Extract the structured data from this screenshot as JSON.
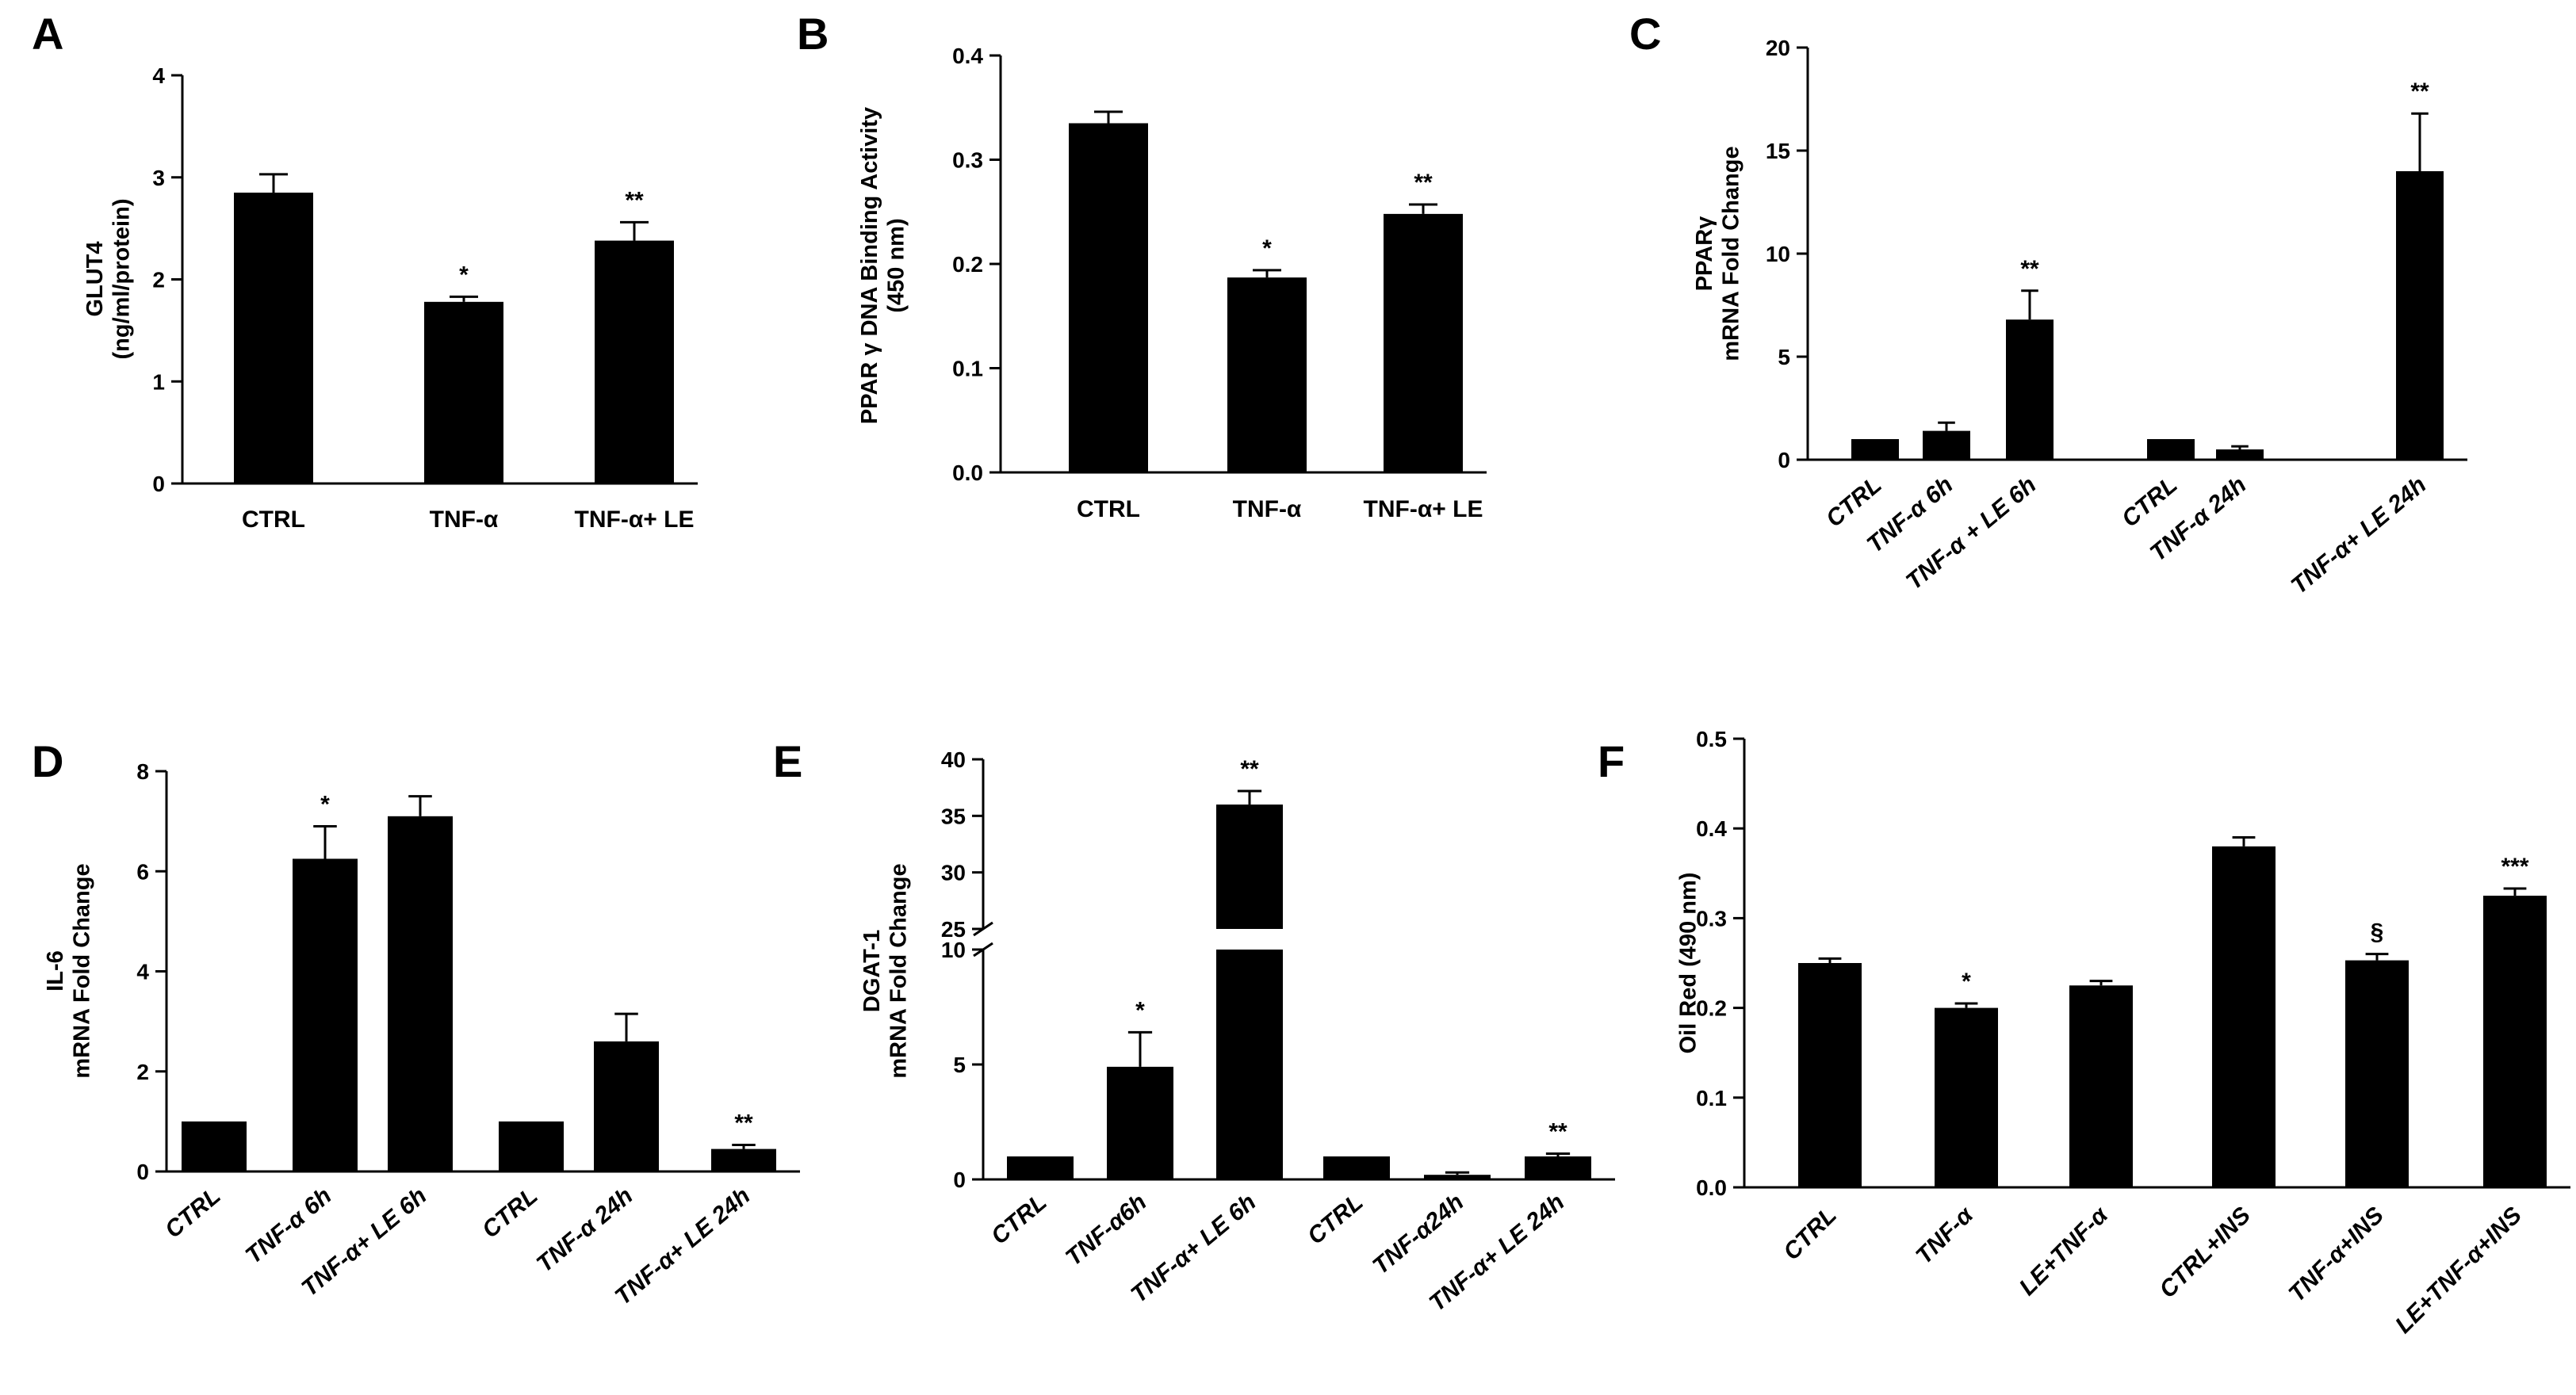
{
  "chart_data": [
    {
      "panel": "A",
      "type": "bar",
      "ylabel": [
        "GLUT4",
        "(ng/ml/protein)"
      ],
      "ylim": [
        0,
        4
      ],
      "yticks": [
        "0",
        "1",
        "2",
        "3",
        "4"
      ],
      "categories": [
        "CTRL",
        "TNF-α",
        "TNF-α+ LE"
      ],
      "values": [
        2.85,
        1.78,
        2.38
      ],
      "errors": [
        0.18,
        0.05,
        0.18
      ],
      "significance": [
        "",
        "*",
        "**"
      ]
    },
    {
      "panel": "B",
      "type": "bar",
      "ylabel": [
        "PPAR γ DNA Binding Activity",
        "(450 nm)"
      ],
      "ylim": [
        0,
        0.4
      ],
      "yticks": [
        "0.0",
        "0.1",
        "0.2",
        "0.3",
        "0.4"
      ],
      "categories": [
        "CTRL",
        "TNF-α",
        "TNF-α+ LE"
      ],
      "values": [
        0.335,
        0.187,
        0.248
      ],
      "errors": [
        0.011,
        0.007,
        0.009
      ],
      "significance": [
        "",
        "*",
        "**"
      ]
    },
    {
      "panel": "C",
      "type": "bar",
      "ylabel": [
        "PPARγ",
        "mRNA Fold Change"
      ],
      "ylim": [
        0,
        20
      ],
      "yticks": [
        "0",
        "5",
        "10",
        "15",
        "20"
      ],
      "categories": [
        "CTRL",
        "TNF-α 6h",
        "TNF-α + LE 6h",
        "CTRL",
        "TNF-α  24h",
        "TNF-α+ LE 24h"
      ],
      "values": [
        1.0,
        1.4,
        6.8,
        1.0,
        0.5,
        14.0
      ],
      "errors": [
        0.0,
        0.4,
        1.4,
        0.0,
        0.15,
        2.8
      ],
      "significance": [
        "",
        "",
        "**",
        "",
        "",
        "**"
      ]
    },
    {
      "panel": "D",
      "type": "bar",
      "ylabel": [
        "IL-6",
        "mRNA Fold Change"
      ],
      "ylim": [
        0,
        8
      ],
      "yticks": [
        "0",
        "2",
        "4",
        "6",
        "8"
      ],
      "categories": [
        "CTRL",
        "TNF-α 6h",
        "TNF-α+ LE 6h",
        "CTRL",
        "TNF-α 24h",
        "TNF-α+ LE 24h"
      ],
      "values": [
        1.0,
        6.25,
        7.1,
        1.0,
        2.6,
        0.45
      ],
      "errors": [
        0.0,
        0.65,
        0.4,
        0.0,
        0.55,
        0.08
      ],
      "significance": [
        "",
        "*",
        "",
        "",
        "",
        "**"
      ]
    },
    {
      "panel": "E",
      "type": "bar",
      "broken_axis": true,
      "ylabel": [
        "DGAT-1",
        "mRNA Fold Change"
      ],
      "ylim_lower": [
        0,
        10
      ],
      "ylim_upper": [
        25,
        40
      ],
      "yticks_lower": [
        "0",
        "5",
        "10"
      ],
      "yticks_upper": [
        "25",
        "30",
        "35",
        "40"
      ],
      "categories": [
        "CTRL",
        "TNF-α6h",
        "TNF-α+ LE 6h",
        "CTRL",
        "TNF-α24h",
        "TNF-α+ LE 24h"
      ],
      "values": [
        1.0,
        4.9,
        36.0,
        1.0,
        0.2,
        1.0
      ],
      "errors": [
        0.0,
        1.5,
        1.2,
        0.0,
        0.1,
        0.12
      ],
      "significance": [
        "",
        "*",
        "**",
        "",
        "",
        "**"
      ]
    },
    {
      "panel": "F",
      "type": "bar",
      "ylabel": [
        "Oil Red (490 nm)"
      ],
      "ylim": [
        0,
        0.5
      ],
      "yticks": [
        "0.0",
        "0.1",
        "0.2",
        "0.3",
        "0.4",
        "0.5"
      ],
      "categories": [
        "CTRL",
        "TNF-α",
        "LE+TNF-α",
        "CTRL+INS",
        "TNF-α+INS",
        "LE+TNF-α+INS"
      ],
      "values": [
        0.25,
        0.2,
        0.225,
        0.38,
        0.253,
        0.325
      ],
      "errors": [
        0.005,
        0.005,
        0.005,
        0.01,
        0.007,
        0.008
      ],
      "significance": [
        "",
        "*",
        "",
        "",
        "§",
        "***"
      ]
    }
  ]
}
